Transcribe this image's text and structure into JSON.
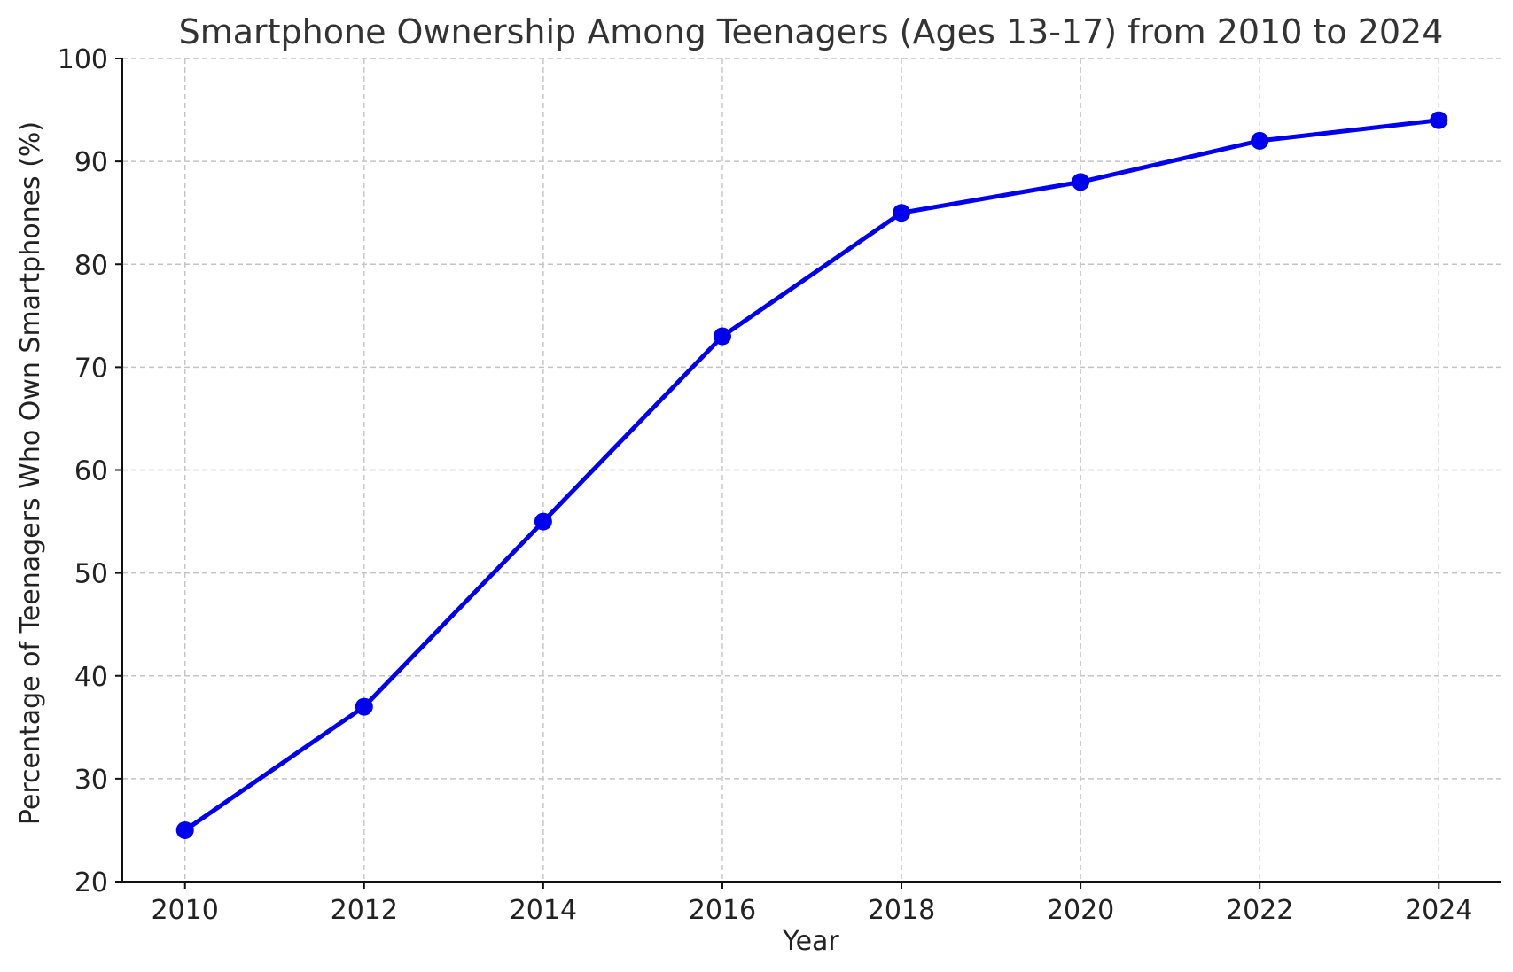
{
  "chart_data": {
    "type": "line",
    "title": "Smartphone Ownership Among Teenagers (Ages 13-17) from 2010 to 2024",
    "xlabel": "Year",
    "ylabel": "Percentage of Teenagers Who Own Smartphones (%)",
    "x": [
      2010,
      2012,
      2014,
      2016,
      2018,
      2020,
      2022,
      2024
    ],
    "xticks": [
      "2010",
      "2012",
      "2014",
      "2016",
      "2018",
      "2020",
      "2022",
      "2024"
    ],
    "yticks": [
      "20",
      "30",
      "40",
      "50",
      "60",
      "70",
      "80",
      "90",
      "100"
    ],
    "xlim": [
      2009.3,
      2024.7
    ],
    "ylim": [
      20,
      100
    ],
    "grid": true,
    "legend": "none",
    "series": [
      {
        "values": [
          25,
          37,
          55,
          73,
          85,
          88,
          92,
          94
        ],
        "color": "#0000ee",
        "marker": "circle"
      }
    ]
  }
}
